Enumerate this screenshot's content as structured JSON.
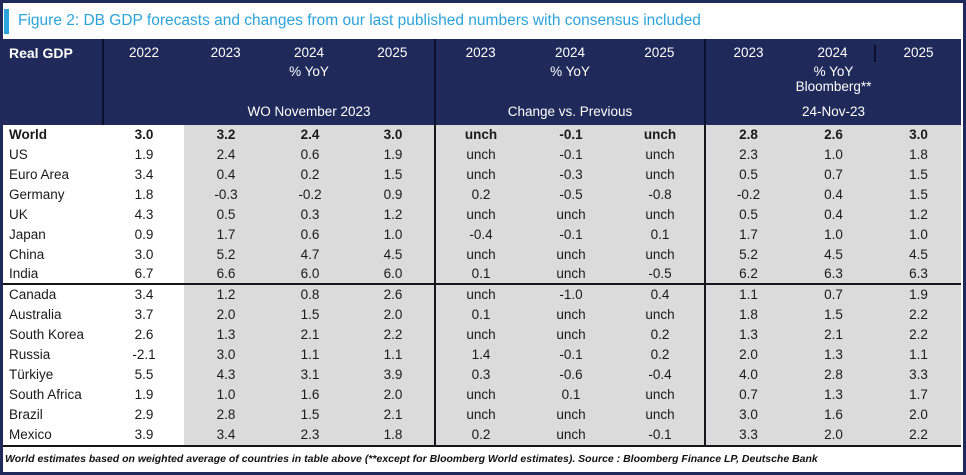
{
  "colors": {
    "header_bg": "#1F2A5B",
    "accent_blue": "#2BA3DC",
    "shade": "#DBDBDB"
  },
  "figure": {
    "title": "Figure 2: DB GDP forecasts and changes from our last published numbers with consensus included"
  },
  "table": {
    "corner_label": "Real GDP",
    "base_year": "2022",
    "groups": [
      {
        "years": [
          "2023",
          "2024",
          "2025"
        ],
        "unit": "% YoY",
        "label": "WO November 2023"
      },
      {
        "years": [
          "2023",
          "2024",
          "2025"
        ],
        "unit": "% YoY",
        "label": "Change vs. Previous"
      },
      {
        "years": [
          "2023",
          "2024",
          "2025"
        ],
        "unit": "% YoY",
        "sub": "Bloomberg**",
        "label": "24-Nov-23"
      }
    ],
    "rows": [
      {
        "country": "World",
        "bold": true,
        "sep": false,
        "v2022": "3.0",
        "wo": [
          "3.2",
          "2.4",
          "3.0"
        ],
        "chg": [
          "unch",
          "-0.1",
          "unch"
        ],
        "bbg": [
          "2.8",
          "2.6",
          "3.0"
        ]
      },
      {
        "country": "US",
        "bold": false,
        "sep": false,
        "v2022": "1.9",
        "wo": [
          "2.4",
          "0.6",
          "1.9"
        ],
        "chg": [
          "unch",
          "-0.1",
          "unch"
        ],
        "bbg": [
          "2.3",
          "1.0",
          "1.8"
        ]
      },
      {
        "country": "Euro Area",
        "bold": false,
        "sep": false,
        "v2022": "3.4",
        "wo": [
          "0.4",
          "0.2",
          "1.5"
        ],
        "chg": [
          "unch",
          "-0.3",
          "unch"
        ],
        "bbg": [
          "0.5",
          "0.7",
          "1.5"
        ]
      },
      {
        "country": "Germany",
        "bold": false,
        "sep": false,
        "v2022": "1.8",
        "wo": [
          "-0.3",
          "-0.2",
          "0.9"
        ],
        "chg": [
          "0.2",
          "-0.5",
          "-0.8"
        ],
        "bbg": [
          "-0.2",
          "0.4",
          "1.5"
        ]
      },
      {
        "country": "UK",
        "bold": false,
        "sep": false,
        "v2022": "4.3",
        "wo": [
          "0.5",
          "0.3",
          "1.2"
        ],
        "chg": [
          "unch",
          "unch",
          "unch"
        ],
        "bbg": [
          "0.5",
          "0.4",
          "1.2"
        ]
      },
      {
        "country": "Japan",
        "bold": false,
        "sep": false,
        "v2022": "0.9",
        "wo": [
          "1.7",
          "0.6",
          "1.0"
        ],
        "chg": [
          "-0.4",
          "-0.1",
          "0.1"
        ],
        "bbg": [
          "1.7",
          "1.0",
          "1.0"
        ]
      },
      {
        "country": "China",
        "bold": false,
        "sep": false,
        "v2022": "3.0",
        "wo": [
          "5.2",
          "4.7",
          "4.5"
        ],
        "chg": [
          "unch",
          "unch",
          "unch"
        ],
        "bbg": [
          "5.2",
          "4.5",
          "4.5"
        ]
      },
      {
        "country": "India",
        "bold": false,
        "sep": true,
        "v2022": "6.7",
        "wo": [
          "6.6",
          "6.0",
          "6.0"
        ],
        "chg": [
          "0.1",
          "unch",
          "-0.5"
        ],
        "bbg": [
          "6.2",
          "6.3",
          "6.3"
        ]
      },
      {
        "country": "Canada",
        "bold": false,
        "sep": false,
        "v2022": "3.4",
        "wo": [
          "1.2",
          "0.8",
          "2.6"
        ],
        "chg": [
          "unch",
          "-1.0",
          "0.4"
        ],
        "bbg": [
          "1.1",
          "0.7",
          "1.9"
        ]
      },
      {
        "country": "Australia",
        "bold": false,
        "sep": false,
        "v2022": "3.7",
        "wo": [
          "2.0",
          "1.5",
          "2.0"
        ],
        "chg": [
          "0.1",
          "unch",
          "unch"
        ],
        "bbg": [
          "1.8",
          "1.5",
          "2.2"
        ]
      },
      {
        "country": "South Korea",
        "bold": false,
        "sep": false,
        "v2022": "2.6",
        "wo": [
          "1.3",
          "2.1",
          "2.2"
        ],
        "chg": [
          "unch",
          "unch",
          "0.2"
        ],
        "bbg": [
          "1.3",
          "2.1",
          "2.2"
        ]
      },
      {
        "country": "Russia",
        "bold": false,
        "sep": false,
        "v2022": "-2.1",
        "wo": [
          "3.0",
          "1.1",
          "1.1"
        ],
        "chg": [
          "1.4",
          "-0.1",
          "0.2"
        ],
        "bbg": [
          "2.0",
          "1.3",
          "1.1"
        ]
      },
      {
        "country": "Türkiye",
        "bold": false,
        "sep": false,
        "v2022": "5.5",
        "wo": [
          "4.3",
          "3.1",
          "3.9"
        ],
        "chg": [
          "0.3",
          "-0.6",
          "-0.4"
        ],
        "bbg": [
          "4.0",
          "2.8",
          "3.3"
        ]
      },
      {
        "country": "South Africa",
        "bold": false,
        "sep": false,
        "v2022": "1.9",
        "wo": [
          "1.0",
          "1.6",
          "2.0"
        ],
        "chg": [
          "unch",
          "0.1",
          "unch"
        ],
        "bbg": [
          "0.7",
          "1.3",
          "1.7"
        ]
      },
      {
        "country": "Brazil",
        "bold": false,
        "sep": false,
        "v2022": "2.9",
        "wo": [
          "2.8",
          "1.5",
          "2.1"
        ],
        "chg": [
          "unch",
          "unch",
          "unch"
        ],
        "bbg": [
          "3.0",
          "1.6",
          "2.0"
        ]
      },
      {
        "country": "Mexico",
        "bold": false,
        "sep": false,
        "v2022": "3.9",
        "wo": [
          "3.4",
          "2.3",
          "1.8"
        ],
        "chg": [
          "0.2",
          "unch",
          "-0.1"
        ],
        "bbg": [
          "3.3",
          "2.0",
          "2.2"
        ]
      }
    ]
  },
  "footnote": "World estimates based on weighted average of countries in table above (**except for Bloomberg World estimates). Source : Bloomberg Finance LP, Deutsche Bank"
}
